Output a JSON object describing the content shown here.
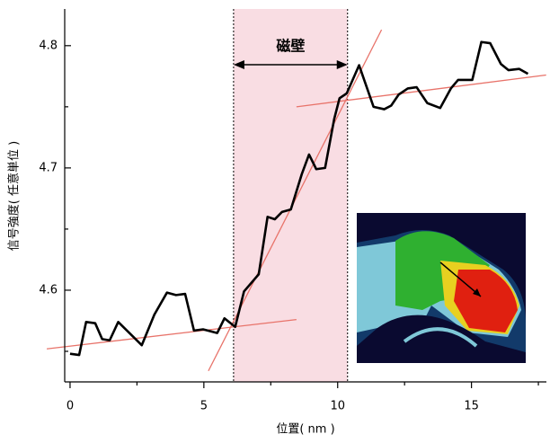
{
  "chart_data": {
    "type": "line",
    "x_label": "位置( nm )",
    "y_label": "信号強度( 任意単位 )",
    "xlim": [
      -0.2,
      17.8
    ],
    "xticks": [
      0,
      5,
      10,
      15
    ],
    "xminor": [
      2.5,
      7.5,
      12.5,
      17.5
    ],
    "ylim": [
      4.525,
      4.83
    ],
    "yticks": [
      4.6,
      4.7,
      4.8
    ],
    "yminor": [
      4.55,
      4.65,
      4.75
    ],
    "x": [
      0,
      0.34,
      0.6,
      0.94,
      1.2,
      1.48,
      1.8,
      2.68,
      3.15,
      3.62,
      3.96,
      4.3,
      4.63,
      4.97,
      5.5,
      5.77,
      6.17,
      6.5,
      7.05,
      7.38,
      7.65,
      7.92,
      8.25,
      8.66,
      8.93,
      9.2,
      9.53,
      9.87,
      10.07,
      10.34,
      10.8,
      11.34,
      11.74,
      12.0,
      12.28,
      12.62,
      12.95,
      13.35,
      13.83,
      14.23,
      14.5,
      15.03,
      15.37,
      15.7,
      16.1,
      16.38,
      16.78,
      17.11
    ],
    "series": [
      {
        "color": "#000000",
        "values": [
          4.548,
          4.547,
          4.574,
          4.573,
          4.56,
          4.559,
          4.574,
          4.555,
          4.58,
          4.598,
          4.596,
          4.597,
          4.567,
          4.568,
          4.565,
          4.577,
          4.57,
          4.599,
          4.613,
          4.66,
          4.658,
          4.664,
          4.666,
          4.695,
          4.711,
          4.699,
          4.7,
          4.74,
          4.757,
          4.761,
          4.784,
          4.75,
          4.748,
          4.751,
          4.76,
          4.765,
          4.766,
          4.753,
          4.749,
          4.765,
          4.772,
          4.772,
          4.803,
          4.802,
          4.785,
          4.78,
          4.781,
          4.777
        ]
      }
    ],
    "fit_lines": [
      {
        "color": "#e8736a",
        "x": [
          -0.87,
          8.46
        ],
        "y": [
          4.552,
          4.576
        ]
      },
      {
        "color": "#e8736a",
        "x": [
          5.17,
          11.64
        ],
        "y": [
          4.534,
          4.813
        ]
      },
      {
        "color": "#e8736a",
        "x": [
          8.46,
          17.79
        ],
        "y": [
          4.75,
          4.776
        ]
      }
    ],
    "domain_wall": {
      "x": [
        6.11,
        10.37
      ],
      "label": "磁壁",
      "color": "#f9dde3"
    }
  }
}
